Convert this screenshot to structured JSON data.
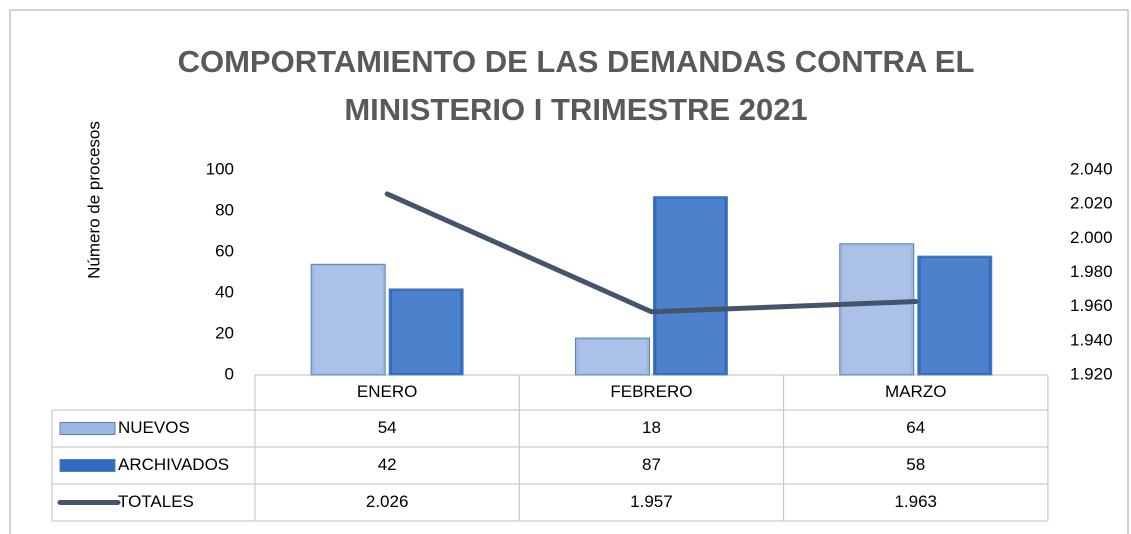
{
  "chart_data": {
    "type": "bar",
    "title": "COMPORTAMIENTO  DE LAS DEMANDAS CONTRA EL MINISTERIO I TRIMESTRE 2021",
    "y_label": "Número de procesos",
    "categories": [
      "ENERO",
      "FEBRERO",
      "MARZO"
    ],
    "series": [
      {
        "name": "NUEVOS",
        "type": "bar",
        "color": "#9db7e3",
        "values": [
          54,
          18,
          64
        ]
      },
      {
        "name": "ARCHIVADOS",
        "type": "bar",
        "color": "#2e6cc4",
        "values": [
          42,
          87,
          58
        ]
      },
      {
        "name": "TOTALES",
        "type": "line",
        "axis": "y2",
        "color": "#44546a",
        "values": [
          2026,
          1957,
          1963
        ],
        "value_labels": [
          "2.026",
          "1.957",
          "1.963"
        ]
      }
    ],
    "ylim": [
      0,
      100
    ],
    "yticks": [
      0,
      20,
      40,
      60,
      80,
      100
    ],
    "y2lim": [
      1920,
      2040
    ],
    "y2ticks": [
      {
        "value": 1920,
        "label": "1.920"
      },
      {
        "value": 1940,
        "label": "1.940"
      },
      {
        "value": 1960,
        "label": "1.960"
      },
      {
        "value": 1980,
        "label": "1.980"
      },
      {
        "value": 2000,
        "label": "2.000"
      },
      {
        "value": 2020,
        "label": "2.020"
      },
      {
        "value": 2040,
        "label": "2.040"
      }
    ],
    "grid": false
  }
}
